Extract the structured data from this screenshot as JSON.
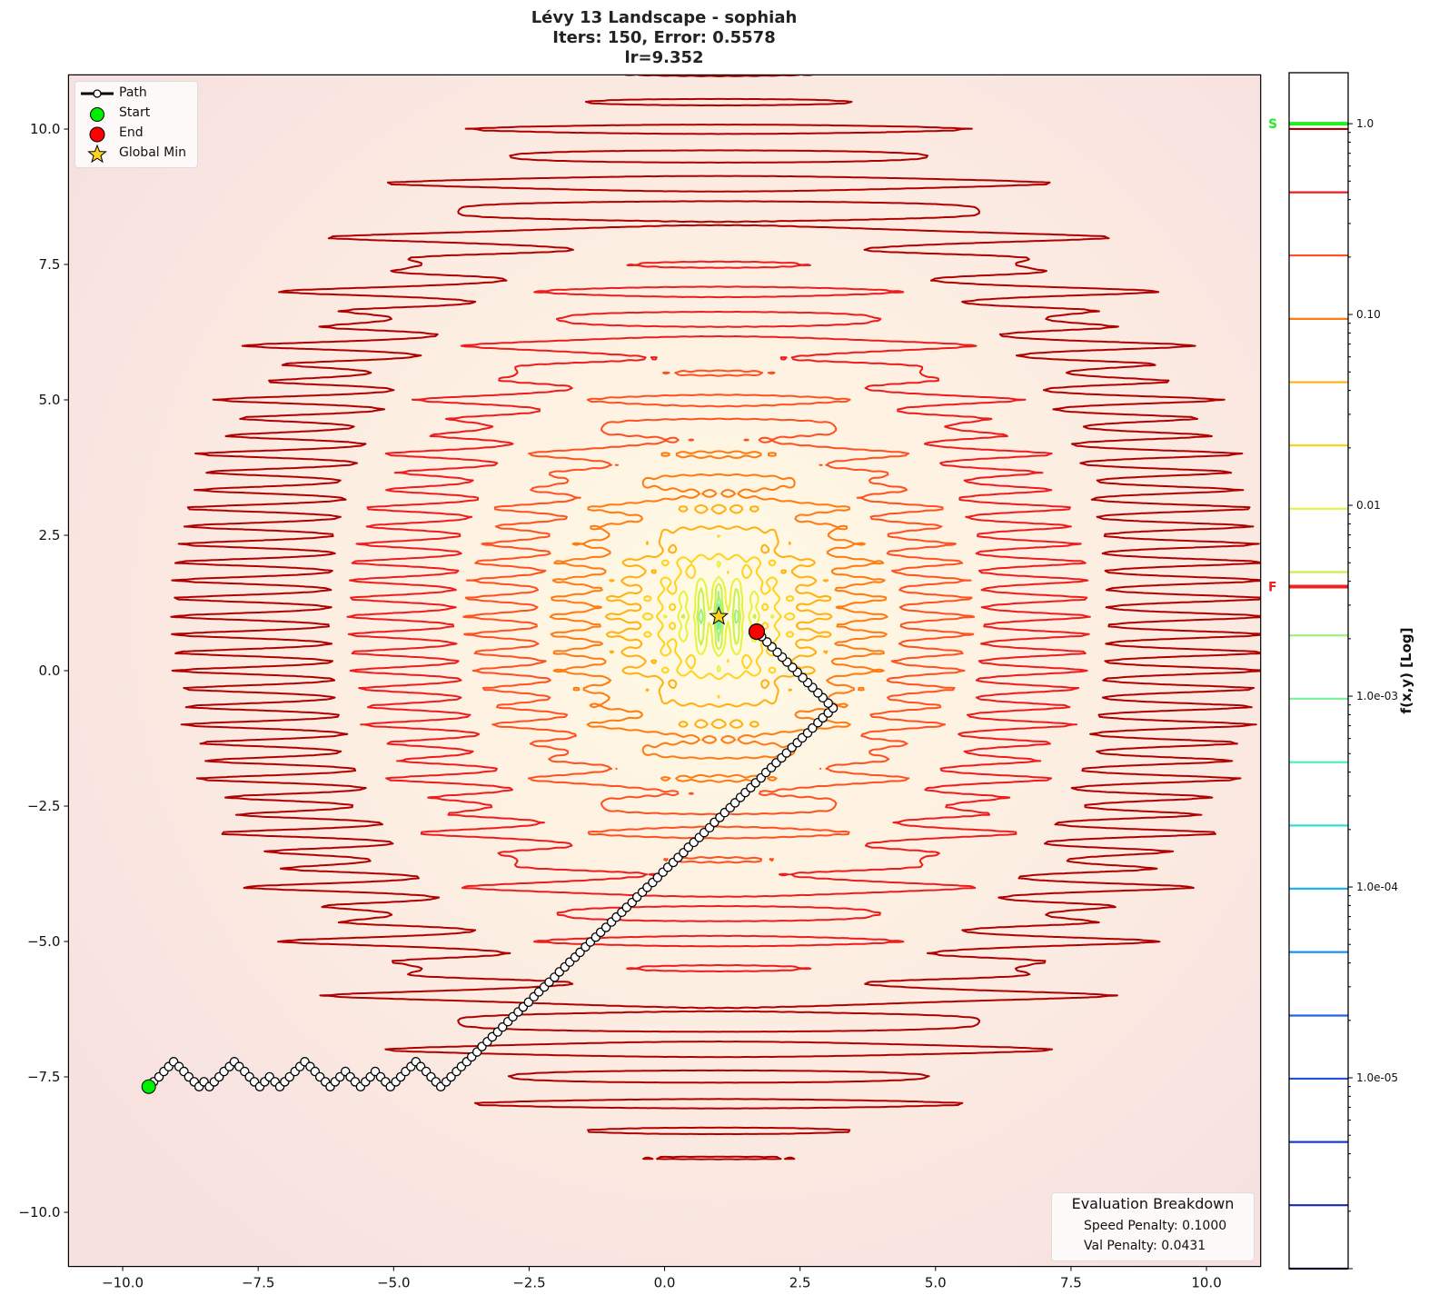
{
  "title": {
    "line1": "Lévy 13 Landscape - sophiah",
    "line2": "Iters: 150, Error: 0.5578",
    "line3": "lr=9.352"
  },
  "legend": {
    "path": "Path",
    "start": "Start",
    "end": "End",
    "global_min": "Global Min"
  },
  "evaluation": {
    "title": "Evaluation Breakdown",
    "speed_penalty": "Speed Penalty: 0.1000",
    "val_penalty": "Val Penalty: 0.0431"
  },
  "colorbar": {
    "label": "f(x,y) [Log]",
    "scale": "log",
    "range": [
      1e-06,
      1.85
    ],
    "tick_values": [
      1.0,
      0.1,
      0.01,
      0.001,
      0.0001,
      1e-05
    ],
    "tick_labels": [
      "1.0",
      "0.10",
      "0.01",
      "1.0e-03",
      "1.0e-04",
      "1.0e-05"
    ],
    "start_marker": {
      "label": "S",
      "value": 1.0,
      "color": "#22ee22"
    },
    "final_marker": {
      "label": "F",
      "value": 0.00375,
      "color": "#ee2222"
    }
  },
  "chart_data": {
    "type": "contour",
    "function": "Lévy 13",
    "xlim": [
      -11,
      11
    ],
    "ylim": [
      -11,
      11
    ],
    "x_ticks": [
      -10,
      -7.5,
      -5,
      -2.5,
      0,
      2.5,
      5,
      7.5,
      10
    ],
    "x_tick_labels": [
      "−10.0",
      "−7.5",
      "−5.0",
      "−2.5",
      "0.0",
      "2.5",
      "5.0",
      "7.5",
      "10.0"
    ],
    "y_ticks": [
      10,
      7.5,
      5,
      2.5,
      0,
      -2.5,
      -5,
      -7.5,
      -10
    ],
    "y_tick_labels": [
      "10.0",
      "7.5",
      "5.0",
      "2.5",
      "0.0",
      "−2.5",
      "−5.0",
      "−7.5",
      "−10.0"
    ],
    "contour_levels": [
      1e-06,
      2.15e-06,
      4.61e-06,
      9.9e-06,
      2.12e-05,
      4.56e-05,
      9.8e-05,
      0.00021,
      0.000451,
      0.00097,
      0.00208,
      0.00447,
      0.0096,
      0.0206,
      0.0442,
      0.0949,
      0.204,
      0.437,
      0.938
    ],
    "contour_colors": [
      "#191970",
      "#1a28b0",
      "#1c3cd0",
      "#1f50de",
      "#2266e8",
      "#1e8ff0",
      "#1eb4f0",
      "#30e0d8",
      "#48eec0",
      "#78f09c",
      "#a0f07c",
      "#c8f24a",
      "#e8f23a",
      "#ffd21e",
      "#ffb010",
      "#ff7a10",
      "#ff5020",
      "#ee1c1c",
      "#b00000"
    ],
    "background_colors": {
      "center": "#fffbe4",
      "edge": "#f6e0e0"
    },
    "global_min": {
      "x": 1.0,
      "y": 1.0
    },
    "start": {
      "x": -9.52,
      "y": -7.68
    },
    "end": {
      "x": 1.7,
      "y": 0.72
    },
    "path": {
      "x": [
        -9.52,
        -9.43,
        -9.33,
        -9.24,
        -9.15,
        -9.06,
        -8.96,
        -8.87,
        -8.78,
        -8.68,
        -8.59,
        -8.5,
        -8.4,
        -8.31,
        -8.22,
        -8.13,
        -8.03,
        -7.94,
        -7.85,
        -7.75,
        -7.66,
        -7.57,
        -7.47,
        -7.38,
        -7.29,
        -7.19,
        -7.1,
        -7.01,
        -6.92,
        -6.82,
        -6.73,
        -6.64,
        -6.54,
        -6.45,
        -6.36,
        -6.26,
        -6.17,
        -6.08,
        -5.99,
        -5.89,
        -5.8,
        -5.71,
        -5.61,
        -5.52,
        -5.43,
        -5.34,
        -5.24,
        -5.15,
        -5.06,
        -4.96,
        -4.87,
        -4.78,
        -4.68,
        -4.59,
        -4.5,
        -4.4,
        -4.31,
        -4.22,
        -4.13,
        -4.03,
        -3.94,
        -3.84,
        -3.75,
        -3.65,
        -3.56,
        -3.46,
        -3.37,
        -3.27,
        -3.18,
        -3.08,
        -2.99,
        -2.89,
        -2.8,
        -2.7,
        -2.61,
        -2.51,
        -2.41,
        -2.32,
        -2.22,
        -2.13,
        -2.03,
        -1.94,
        -1.84,
        -1.75,
        -1.65,
        -1.56,
        -1.46,
        -1.37,
        -1.27,
        -1.18,
        -1.08,
        -0.98,
        -0.89,
        -0.79,
        -0.7,
        -0.6,
        -0.51,
        -0.41,
        -0.32,
        -0.22,
        -0.13,
        -0.03,
        0.06,
        0.16,
        0.25,
        0.35,
        0.44,
        0.54,
        0.64,
        0.73,
        0.83,
        0.92,
        1.02,
        1.11,
        1.21,
        1.3,
        1.4,
        1.49,
        1.59,
        1.68,
        1.78,
        1.87,
        1.97,
        2.06,
        2.16,
        2.25,
        2.35,
        2.45,
        2.54,
        2.64,
        2.73,
        2.83,
        2.92,
        3.02,
        3.11,
        3.02,
        2.92,
        2.83,
        2.73,
        2.64,
        2.55,
        2.45,
        2.36,
        2.26,
        2.17,
        2.08,
        1.98,
        1.89,
        1.79,
        1.7
      ],
      "y": [
        -7.68,
        -7.59,
        -7.5,
        -7.4,
        -7.31,
        -7.22,
        -7.31,
        -7.4,
        -7.5,
        -7.59,
        -7.68,
        -7.59,
        -7.68,
        -7.59,
        -7.5,
        -7.4,
        -7.31,
        -7.22,
        -7.31,
        -7.4,
        -7.5,
        -7.59,
        -7.68,
        -7.59,
        -7.5,
        -7.59,
        -7.68,
        -7.59,
        -7.5,
        -7.4,
        -7.31,
        -7.22,
        -7.31,
        -7.4,
        -7.5,
        -7.59,
        -7.68,
        -7.59,
        -7.5,
        -7.4,
        -7.5,
        -7.59,
        -7.68,
        -7.59,
        -7.5,
        -7.4,
        -7.5,
        -7.59,
        -7.68,
        -7.59,
        -7.5,
        -7.4,
        -7.31,
        -7.22,
        -7.31,
        -7.4,
        -7.5,
        -7.59,
        -7.68,
        -7.59,
        -7.5,
        -7.4,
        -7.31,
        -7.22,
        -7.13,
        -7.04,
        -6.94,
        -6.85,
        -6.76,
        -6.67,
        -6.58,
        -6.48,
        -6.39,
        -6.3,
        -6.21,
        -6.12,
        -6.02,
        -5.93,
        -5.84,
        -5.75,
        -5.66,
        -5.56,
        -5.47,
        -5.38,
        -5.29,
        -5.2,
        -5.1,
        -5.01,
        -4.92,
        -4.83,
        -4.74,
        -4.64,
        -4.55,
        -4.46,
        -4.37,
        -4.28,
        -4.18,
        -4.09,
        -4.0,
        -3.91,
        -3.82,
        -3.72,
        -3.63,
        -3.54,
        -3.45,
        -3.36,
        -3.26,
        -3.17,
        -3.08,
        -2.99,
        -2.9,
        -2.8,
        -2.71,
        -2.62,
        -2.53,
        -2.44,
        -2.34,
        -2.25,
        -2.16,
        -2.07,
        -1.98,
        -1.88,
        -1.79,
        -1.7,
        -1.61,
        -1.52,
        -1.42,
        -1.33,
        -1.24,
        -1.15,
        -1.06,
        -0.96,
        -0.87,
        -0.78,
        -0.69,
        -0.6,
        -0.5,
        -0.41,
        -0.31,
        -0.22,
        -0.13,
        -0.03,
        0.06,
        0.16,
        0.25,
        0.34,
        0.44,
        0.53,
        0.63,
        0.72
      ]
    },
    "legend_position": "upper-left"
  }
}
